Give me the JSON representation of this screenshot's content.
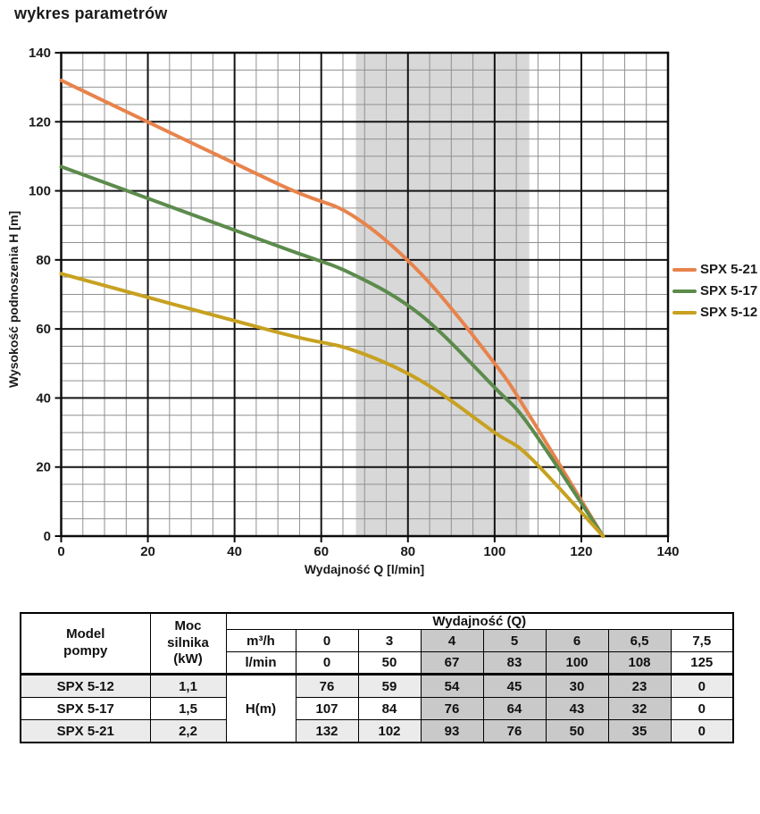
{
  "page_title": "wykres parametrów",
  "accent_color": "#4189CF",
  "chart_data": {
    "type": "line",
    "title": "",
    "xlabel": "Wydajność Q [l/min]",
    "ylabel": "Wysokość podnoszenia H [m]",
    "xlim": [
      0,
      140
    ],
    "ylim": [
      0,
      140
    ],
    "x_ticks": [
      0,
      20,
      40,
      60,
      80,
      100,
      120,
      140
    ],
    "y_ticks": [
      0,
      20,
      40,
      60,
      80,
      100,
      120,
      140
    ],
    "minor_step": 5,
    "major_step": 20,
    "grid": true,
    "highlight_band": {
      "x0": 68,
      "x1": 108,
      "color": "#d8d8d8"
    },
    "x": [
      0,
      50,
      67,
      83,
      100,
      108,
      125
    ],
    "series": [
      {
        "name": "SPX 5-21",
        "color": "#E8834C",
        "values": [
          132,
          102,
          93,
          76,
          50,
          35,
          0
        ]
      },
      {
        "name": "SPX 5-17",
        "color": "#5C8B4C",
        "values": [
          107,
          84,
          76,
          64,
          43,
          32,
          0
        ]
      },
      {
        "name": "SPX 5-12",
        "color": "#C7A120",
        "values": [
          76,
          59,
          54,
          45,
          30,
          23,
          0
        ]
      }
    ],
    "legend_position": "right",
    "grid_minor_color": "#909090",
    "grid_major_color": "#141414"
  },
  "table": {
    "header": {
      "model": "Model pompy",
      "power": "Moc silnika (kW)",
      "flow": "Wydajność (Q)",
      "unit_m3h": "m³/h",
      "unit_lmin": "l/min",
      "head_label": "H(m)"
    },
    "flow_m3h": [
      "0",
      "3",
      "4",
      "5",
      "6",
      "6,5",
      "7,5"
    ],
    "flow_lmin": [
      "0",
      "50",
      "67",
      "83",
      "100",
      "108",
      "125"
    ],
    "rows": [
      {
        "model": "SPX 5-12",
        "power": "1,1",
        "head": [
          "76",
          "59",
          "54",
          "45",
          "30",
          "23",
          "0"
        ]
      },
      {
        "model": "SPX 5-17",
        "power": "1,5",
        "head": [
          "107",
          "84",
          "76",
          "64",
          "43",
          "32",
          "0"
        ]
      },
      {
        "model": "SPX 5-21",
        "power": "2,2",
        "head": [
          "132",
          "102",
          "93",
          "76",
          "50",
          "35",
          "0"
        ]
      }
    ],
    "highlight_cols": [
      2,
      3,
      4,
      5
    ],
    "colors": {
      "col_highlight": "#c9c9c9",
      "row_stripe": "#ebebeb"
    }
  }
}
